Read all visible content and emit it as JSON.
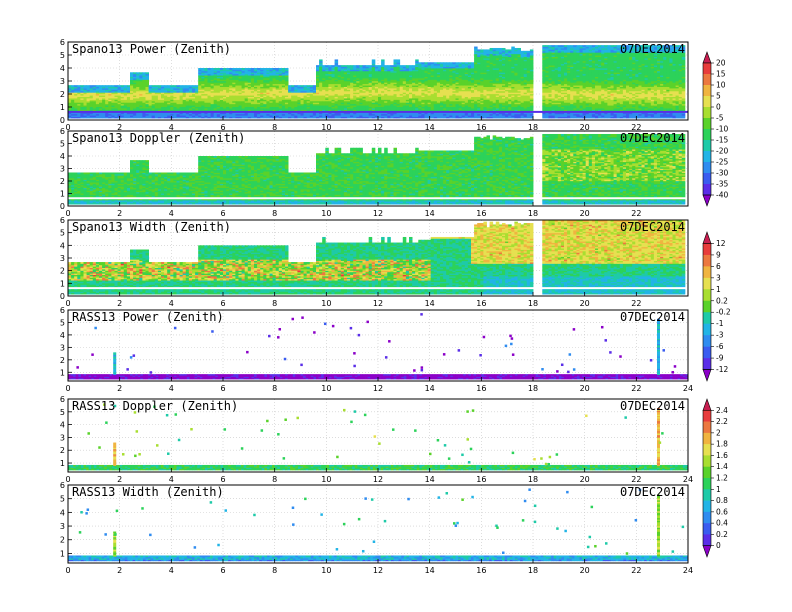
{
  "chart_data": [
    {
      "type": "heatmap",
      "title": "Spano13 Power (Zenith)",
      "date": "07DEC2014",
      "x_ticks": [
        "0",
        "2",
        "4",
        "6",
        "8",
        "10",
        "12",
        "14",
        "16",
        "18",
        "20",
        "22"
      ],
      "xlim": [
        0,
        24
      ],
      "y_ticks": [
        "0",
        "1",
        "2",
        "3",
        "4",
        "5",
        "6"
      ],
      "ylim": [
        0,
        6
      ],
      "grid": true,
      "colorbar": "A",
      "kind": "spano-power"
    },
    {
      "type": "heatmap",
      "title": "Spano13 Doppler (Zenith)",
      "date": "07DEC2014",
      "x_ticks": [
        "0",
        "2",
        "4",
        "6",
        "8",
        "10",
        "12",
        "14",
        "16",
        "18",
        "20",
        "22"
      ],
      "xlim": [
        0,
        24
      ],
      "y_ticks": [
        "0",
        "1",
        "2",
        "3",
        "4",
        "5",
        "6"
      ],
      "ylim": [
        0,
        6
      ],
      "grid": true,
      "colorbar": "A",
      "kind": "spano-doppler"
    },
    {
      "type": "heatmap",
      "title": "Spano13 Width (Zenith)",
      "date": "07DEC2014",
      "x_ticks": [
        "0",
        "2",
        "4",
        "6",
        "8",
        "10",
        "12",
        "14",
        "16",
        "18",
        "20",
        "22"
      ],
      "xlim": [
        0,
        24
      ],
      "y_ticks": [
        "0",
        "1",
        "2",
        "3",
        "4",
        "5",
        "6"
      ],
      "ylim": [
        0,
        6
      ],
      "grid": true,
      "colorbar": "B",
      "kind": "spano-width"
    },
    {
      "type": "heatmap",
      "title": "RASS13 Power (Zenith)",
      "date": "07DEC2014",
      "x_ticks": [
        "0",
        "2",
        "4",
        "6",
        "8",
        "10",
        "12",
        "14",
        "16",
        "18",
        "20",
        "22",
        "24"
      ],
      "xlim": [
        0,
        24
      ],
      "y_ticks": [
        "1",
        "2",
        "3",
        "4",
        "5",
        "6"
      ],
      "ylim": [
        0.3,
        6
      ],
      "grid": true,
      "colorbar": "B",
      "kind": "rass-power"
    },
    {
      "type": "heatmap",
      "title": "RASS13 Doppler (Zenith)",
      "date": "07DEC2014",
      "x_ticks": [
        "0",
        "2",
        "4",
        "6",
        "8",
        "10",
        "12",
        "14",
        "16",
        "18",
        "20",
        "22",
        "24"
      ],
      "xlim": [
        0,
        24
      ],
      "y_ticks": [
        "1",
        "2",
        "3",
        "4",
        "5",
        "6"
      ],
      "ylim": [
        0.3,
        6
      ],
      "grid": true,
      "colorbar": "C",
      "kind": "rass-doppler"
    },
    {
      "type": "heatmap",
      "title": "RASS13 Width (Zenith)",
      "date": "07DEC2014",
      "x_ticks": [
        "0",
        "2",
        "4",
        "6",
        "8",
        "10",
        "12",
        "14",
        "16",
        "18",
        "20",
        "22",
        "24"
      ],
      "xlim": [
        0,
        24
      ],
      "y_ticks": [
        "1",
        "2",
        "3",
        "4",
        "5",
        "6"
      ],
      "ylim": [
        0.3,
        6
      ],
      "grid": true,
      "colorbar": "C",
      "kind": "rass-width"
    }
  ],
  "colorbars": {
    "A": {
      "labels": [
        "20",
        "15",
        "10",
        "5",
        "0",
        "-5",
        "-10",
        "-15",
        "-20",
        "-25",
        "-30",
        "-35",
        "-40"
      ]
    },
    "B": {
      "labels": [
        "12",
        "9",
        "6",
        "3",
        "1",
        "0.2",
        "-0.2",
        "-1",
        "-3",
        "-6",
        "-9",
        "-12"
      ]
    },
    "C": {
      "labels": [
        "2.4",
        "2.2",
        "2",
        "1.8",
        "1.6",
        "1.4",
        "1.2",
        "1",
        "0.8",
        "0.6",
        "0.4",
        "0.2",
        "0"
      ]
    }
  },
  "palette": [
    "#8b00c8",
    "#5a2ee8",
    "#3a5cf0",
    "#2f8cf0",
    "#22b4e6",
    "#1ecaa8",
    "#2cd25a",
    "#5ad22a",
    "#a8de30",
    "#e6e050",
    "#f0b440",
    "#ec7840",
    "#e83c3c",
    "#c81e50"
  ]
}
